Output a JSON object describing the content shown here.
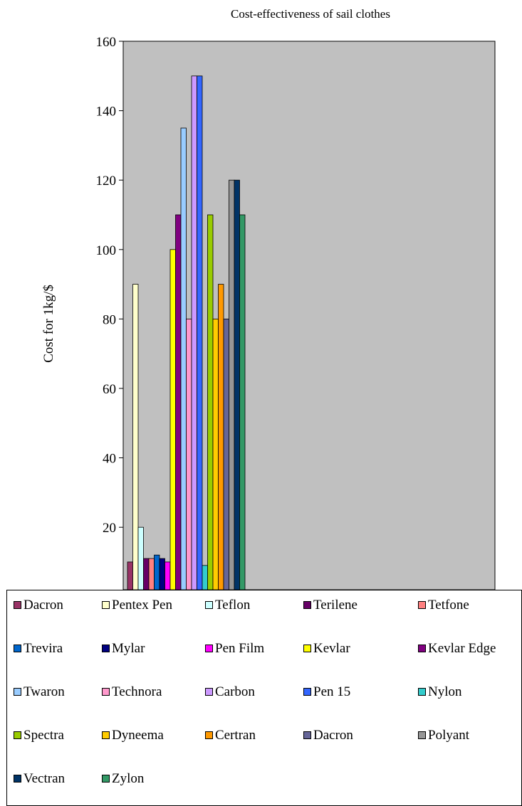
{
  "chart_data": {
    "type": "bar",
    "title": "Cost-effectiveness of sail clothes",
    "xlabel": "",
    "ylabel": "Cost for 1kg/$",
    "ylim": [
      2,
      160
    ],
    "yticks": [
      20,
      40,
      60,
      80,
      100,
      120,
      140,
      160
    ],
    "plot_background": "#c0c0c0",
    "grid": false,
    "legend_position": "bottom",
    "categories": [
      ""
    ],
    "series": [
      {
        "name": "Dacron",
        "values": [
          10
        ],
        "color": "#993366"
      },
      {
        "name": "Pentex Pen",
        "values": [
          90
        ],
        "color": "#ffffcc"
      },
      {
        "name": "Teflon",
        "values": [
          20
        ],
        "color": "#ccffff"
      },
      {
        "name": "Terilene",
        "values": [
          11
        ],
        "color": "#660066"
      },
      {
        "name": "Tetfone",
        "values": [
          11
        ],
        "color": "#ff8080"
      },
      {
        "name": "Trevira",
        "values": [
          12
        ],
        "color": "#0066cc"
      },
      {
        "name": "Mylar",
        "values": [
          11
        ],
        "color": "#000080"
      },
      {
        "name": "Pen Film",
        "values": [
          10
        ],
        "color": "#ff00ff"
      },
      {
        "name": "Kevlar",
        "values": [
          100
        ],
        "color": "#ffff00"
      },
      {
        "name": "Kevlar Edge",
        "values": [
          110
        ],
        "color": "#800080"
      },
      {
        "name": "Twaron",
        "values": [
          135
        ],
        "color": "#99ccff"
      },
      {
        "name": "Technora",
        "values": [
          80
        ],
        "color": "#ff99cc"
      },
      {
        "name": "Carbon",
        "values": [
          150
        ],
        "color": "#cc99ff"
      },
      {
        "name": "Pen 15",
        "values": [
          150
        ],
        "color": "#3366ff"
      },
      {
        "name": "Nylon",
        "values": [
          9
        ],
        "color": "#33cccc"
      },
      {
        "name": "Spectra",
        "values": [
          110
        ],
        "color": "#99cc00"
      },
      {
        "name": "Dyneema",
        "values": [
          80
        ],
        "color": "#ffcc00"
      },
      {
        "name": "Certran",
        "values": [
          90
        ],
        "color": "#ff9900"
      },
      {
        "name": "Dacron",
        "values": [
          80
        ],
        "color": "#666699"
      },
      {
        "name": "Polyant",
        "values": [
          120
        ],
        "color": "#969696"
      },
      {
        "name": "Vectran",
        "values": [
          120
        ],
        "color": "#003366"
      },
      {
        "name": "Zylon",
        "values": [
          110
        ],
        "color": "#339966"
      }
    ]
  }
}
